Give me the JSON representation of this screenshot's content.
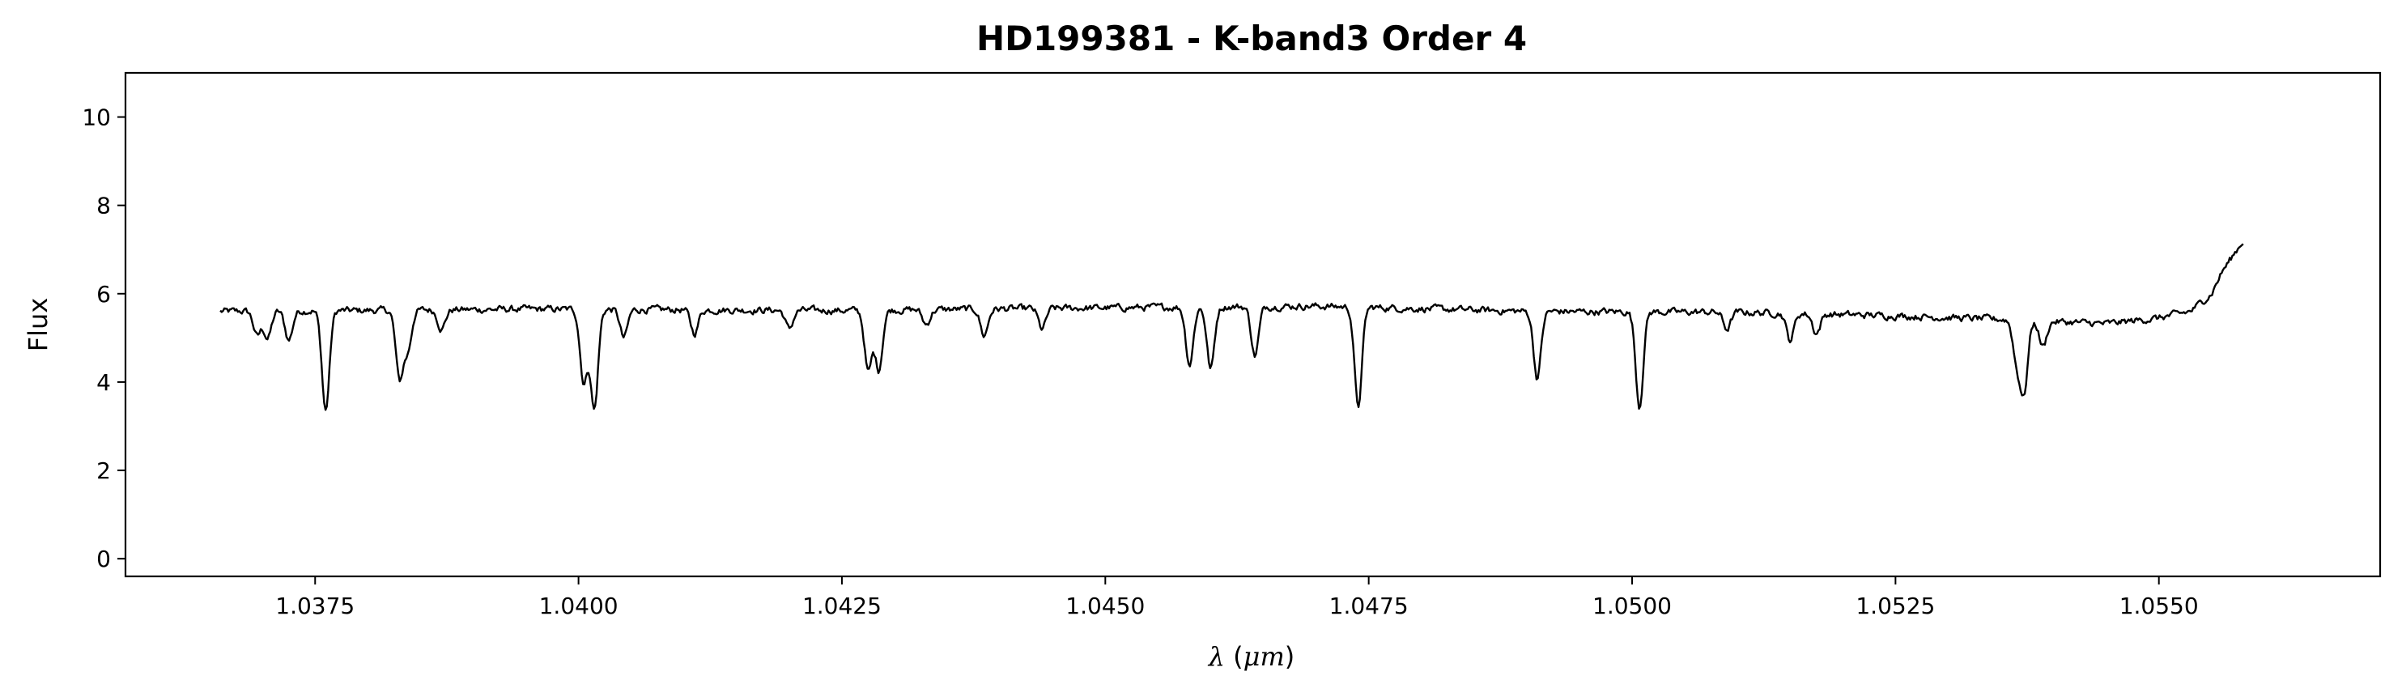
{
  "chart_data": {
    "type": "line",
    "title": "HD199381 - K-band3 Order 4",
    "xlabel": "λ (μm)",
    "xlabel_parts": {
      "lambda": "λ",
      "open": " (",
      "unit": "μm",
      "close": ")"
    },
    "ylabel": "Flux",
    "xlim": [
      1.0357,
      1.0571
    ],
    "ylim": [
      -0.4,
      11.0
    ],
    "x_ticks": [
      1.0375,
      1.04,
      1.0425,
      1.045,
      1.0475,
      1.05,
      1.0525,
      1.055
    ],
    "x_tick_labels": [
      "1.0375",
      "1.0400",
      "1.0425",
      "1.0450",
      "1.0475",
      "1.0500",
      "1.0525",
      "1.0550"
    ],
    "y_ticks": [
      0,
      2,
      4,
      6,
      8,
      10
    ],
    "y_tick_labels": [
      "0",
      "2",
      "4",
      "6",
      "8",
      "10"
    ],
    "grid": false,
    "series": [
      {
        "color": "#000000",
        "x_start": 1.0366,
        "x_end": 1.0558,
        "continuum": [
          [
            1.0366,
            5.6
          ],
          [
            1.038,
            5.62
          ],
          [
            1.0395,
            5.65
          ],
          [
            1.0425,
            5.62
          ],
          [
            1.045,
            5.68
          ],
          [
            1.047,
            5.72
          ],
          [
            1.049,
            5.6
          ],
          [
            1.051,
            5.58
          ],
          [
            1.0525,
            5.5
          ],
          [
            1.0535,
            5.42
          ],
          [
            1.0545,
            5.32
          ],
          [
            1.055,
            5.45
          ],
          [
            1.0553,
            5.6
          ],
          [
            1.0555,
            6.0
          ],
          [
            1.0556,
            6.5
          ],
          [
            1.0558,
            7.2
          ]
        ],
        "absorption_lines": [
          [
            1.03695,
            5.05
          ],
          [
            1.03705,
            5.0
          ],
          [
            1.03725,
            4.95
          ],
          [
            1.0376,
            3.35
          ],
          [
            1.0383,
            4.1
          ],
          [
            1.03838,
            4.75
          ],
          [
            1.0387,
            5.2
          ],
          [
            1.04005,
            4.0
          ],
          [
            1.04015,
            3.4
          ],
          [
            1.04043,
            5.0
          ],
          [
            1.0411,
            5.1
          ],
          [
            1.042,
            5.2
          ],
          [
            1.04275,
            4.25
          ],
          [
            1.04285,
            4.3
          ],
          [
            1.0433,
            5.3
          ],
          [
            1.04385,
            5.05
          ],
          [
            1.0444,
            5.2
          ],
          [
            1.0458,
            4.4
          ],
          [
            1.046,
            4.3
          ],
          [
            1.04642,
            4.6
          ],
          [
            1.0474,
            3.45
          ],
          [
            1.0491,
            4.1
          ],
          [
            1.05007,
            3.45
          ],
          [
            1.0509,
            5.2
          ],
          [
            1.0515,
            4.95
          ],
          [
            1.05175,
            5.1
          ],
          [
            1.05365,
            4.5
          ],
          [
            1.05372,
            3.8
          ],
          [
            1.0539,
            4.8
          ]
        ]
      }
    ]
  }
}
